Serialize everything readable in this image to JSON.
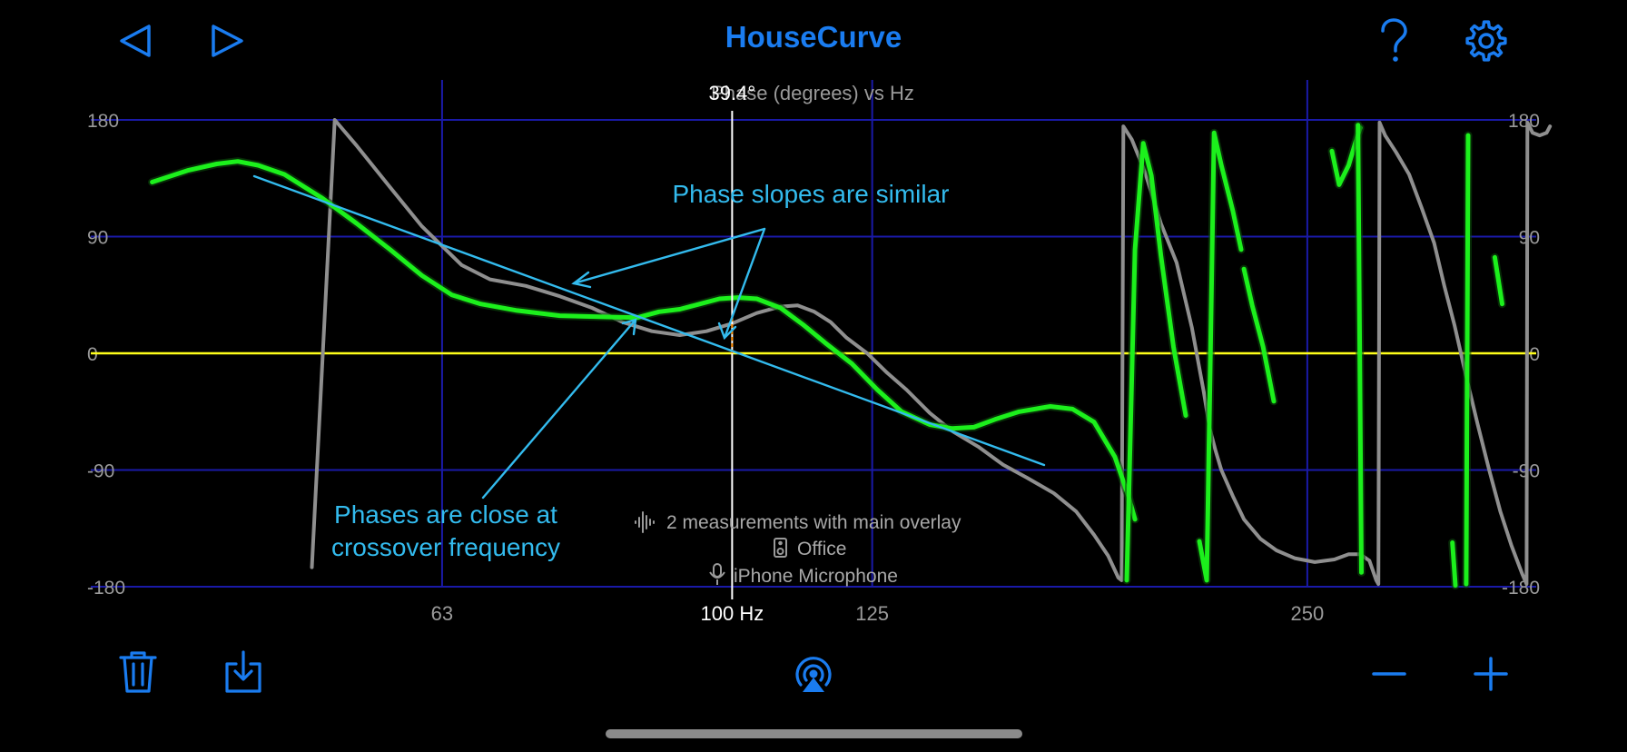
{
  "app": {
    "title": "HouseCurve"
  },
  "toolbar": {
    "back_icon": "back-triangle-icon",
    "forward_icon": "forward-triangle-icon",
    "help_icon": "question-mark-icon",
    "settings_icon": "gear-icon"
  },
  "chart_data": {
    "type": "line",
    "title": "Phase (degrees) vs Hz",
    "xscale": "log",
    "xlim": [
      36,
      360
    ],
    "ylim": [
      -180,
      180
    ],
    "yticks": [
      "180",
      "90",
      "0",
      "-90",
      "-180"
    ],
    "xticks": [
      {
        "value": 63,
        "label": "63"
      },
      {
        "value": 125,
        "label": "125"
      },
      {
        "value": 250,
        "label": "250"
      }
    ],
    "grid": true,
    "reference_line": {
      "y": 0,
      "color": "#ffff1a"
    },
    "cursor": {
      "x": 100,
      "x_label": "100 Hz",
      "value_label": "39.4°"
    },
    "series": [
      {
        "color": "#8f8f8f",
        "points": [
          [
            51.2,
            -165
          ],
          [
            53.1,
            180
          ],
          [
            55,
            160
          ],
          [
            58,
            128
          ],
          [
            61,
            98
          ],
          [
            65,
            68
          ],
          [
            68,
            57
          ],
          [
            72,
            52
          ],
          [
            76,
            44
          ],
          [
            80,
            35
          ],
          [
            84,
            24
          ],
          [
            88,
            17
          ],
          [
            92,
            14
          ],
          [
            96,
            17
          ],
          [
            100,
            23
          ],
          [
            104,
            31
          ],
          [
            108,
            36
          ],
          [
            111,
            37
          ],
          [
            114,
            32
          ],
          [
            117,
            24
          ],
          [
            120,
            12
          ],
          [
            124,
            0
          ],
          [
            128,
            -15
          ],
          [
            132,
            -28
          ],
          [
            137,
            -46
          ],
          [
            142,
            -60
          ],
          [
            148,
            -72
          ],
          [
            154,
            -86
          ],
          [
            160,
            -96
          ],
          [
            167,
            -108
          ],
          [
            173,
            -122
          ],
          [
            178,
            -140
          ],
          [
            182,
            -156
          ],
          [
            185,
            -173
          ],
          [
            186,
            -175
          ],
          [
            186.5,
            175
          ],
          [
            189,
            165
          ],
          [
            193,
            140
          ],
          [
            198,
            100
          ],
          [
            203,
            70
          ],
          [
            208,
            20
          ],
          [
            212,
            -30
          ],
          [
            214,
            -58
          ],
          [
            216,
            -75
          ],
          [
            218,
            -90
          ],
          [
            222,
            -110
          ],
          [
            226,
            -128
          ],
          [
            232,
            -143
          ],
          [
            238,
            -152
          ],
          [
            245,
            -158
          ],
          [
            253,
            -161
          ],
          [
            261,
            -159
          ],
          [
            267,
            -155
          ],
          [
            272,
            -155
          ],
          [
            276,
            -160
          ],
          [
            279,
            -175
          ],
          [
            280,
            -178
          ],
          [
            280.5,
            178
          ],
          [
            283,
            168
          ],
          [
            288,
            155
          ],
          [
            294,
            138
          ],
          [
            300,
            112
          ],
          [
            306,
            85
          ],
          [
            311,
            52
          ],
          [
            316,
            22
          ],
          [
            322,
            -18
          ],
          [
            328,
            -55
          ],
          [
            334,
            -90
          ],
          [
            340,
            -122
          ],
          [
            346,
            -148
          ],
          [
            352,
            -170
          ],
          [
            354.5,
            -178
          ],
          [
            355,
            178
          ],
          [
            358,
            170
          ],
          [
            362,
            168
          ],
          [
            366,
            170
          ],
          [
            368,
            175
          ]
        ]
      },
      {
        "color": "#1cf01c",
        "points": [
          [
            39.7,
            132
          ],
          [
            42,
            141
          ],
          [
            44,
            146
          ],
          [
            45.5,
            148
          ],
          [
            47,
            145
          ],
          [
            49,
            138
          ],
          [
            52,
            120
          ],
          [
            55,
            100
          ],
          [
            58,
            80
          ],
          [
            61,
            60
          ],
          [
            64,
            45
          ],
          [
            67,
            38
          ],
          [
            71,
            33
          ],
          [
            76,
            29
          ],
          [
            82,
            28
          ],
          [
            86,
            27.5
          ],
          [
            89,
            32
          ],
          [
            92,
            34
          ],
          [
            95,
            38
          ],
          [
            98,
            42
          ],
          [
            101,
            43
          ],
          [
            104,
            42
          ],
          [
            108,
            35
          ],
          [
            112,
            22
          ],
          [
            116,
            8
          ],
          [
            121,
            -8
          ],
          [
            126,
            -28
          ],
          [
            131,
            -45
          ],
          [
            137,
            -55
          ],
          [
            142,
            -58
          ],
          [
            147,
            -57
          ],
          [
            152,
            -51
          ],
          [
            158,
            -45
          ],
          [
            166,
            -41
          ],
          [
            172,
            -43
          ],
          [
            178,
            -53
          ],
          [
            184,
            -80
          ],
          [
            188,
            -110
          ],
          [
            190,
            -128
          ]
        ]
      },
      {
        "color": "#1cf01c",
        "points": [
          [
            187.5,
            -175
          ],
          [
            190,
            80
          ],
          [
            192.5,
            162
          ],
          [
            195,
            137
          ],
          [
            198,
            75
          ],
          [
            202,
            5
          ],
          [
            206,
            -48
          ]
        ]
      },
      {
        "color": "#1cf01c",
        "points": [
          [
            210.5,
            -145
          ],
          [
            213,
            -175
          ],
          [
            215.5,
            170
          ],
          [
            218,
            145
          ],
          [
            222,
            110
          ],
          [
            225,
            80
          ]
        ]
      },
      {
        "color": "#1cf01c",
        "points": [
          [
            226,
            65
          ],
          [
            229,
            37
          ],
          [
            233,
            5
          ],
          [
            237,
            -37
          ]
        ]
      },
      {
        "color": "#1cf01c",
        "points": [
          [
            260,
            156
          ],
          [
            263,
            130
          ],
          [
            267,
            145
          ],
          [
            270,
            163
          ],
          [
            272,
            174
          ]
        ]
      },
      {
        "color": "#1cf01c",
        "points": [
          [
            271,
            176
          ],
          [
            272.5,
            -169
          ]
        ]
      },
      {
        "color": "#1cf01c",
        "points": [
          [
            323,
            168
          ],
          [
            322,
            -178
          ]
        ]
      },
      {
        "color": "#1cf01c",
        "points": [
          [
            315,
            -146
          ],
          [
            316.5,
            -179
          ]
        ]
      },
      {
        "color": "#1cf01c",
        "points": [
          [
            337,
            74
          ],
          [
            341,
            38
          ]
        ]
      }
    ]
  },
  "annotations": {
    "slopes": "Phase slopes are similar",
    "close_line1": "Phases are close at",
    "close_line2": "crossover frequency"
  },
  "overlay_info": {
    "measurements": "2 measurements with main overlay",
    "location": "Office",
    "microphone": "iPhone Microphone"
  },
  "bottom_toolbar": {
    "trash_icon": "trash-icon",
    "export_icon": "export-icon",
    "airplay_icon": "airplay-icon",
    "zoom_out_icon": "minus-icon",
    "zoom_in_icon": "plus-icon"
  }
}
